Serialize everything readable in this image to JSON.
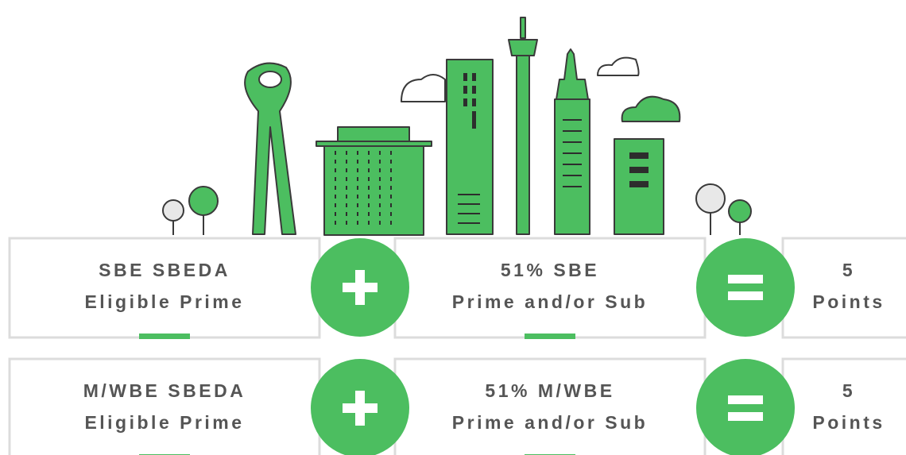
{
  "rows": [
    {
      "left": [
        "SBE SBEDA",
        "Eligible Prime"
      ],
      "middle": [
        "51% SBE",
        "Prime and/or Sub"
      ],
      "right": [
        "5",
        "Points"
      ]
    },
    {
      "left": [
        "M/WBE SBEDA",
        "Eligible Prime"
      ],
      "middle": [
        "51% M/WBE",
        "Prime and/or Sub"
      ],
      "right": [
        "5",
        "Points"
      ]
    }
  ]
}
